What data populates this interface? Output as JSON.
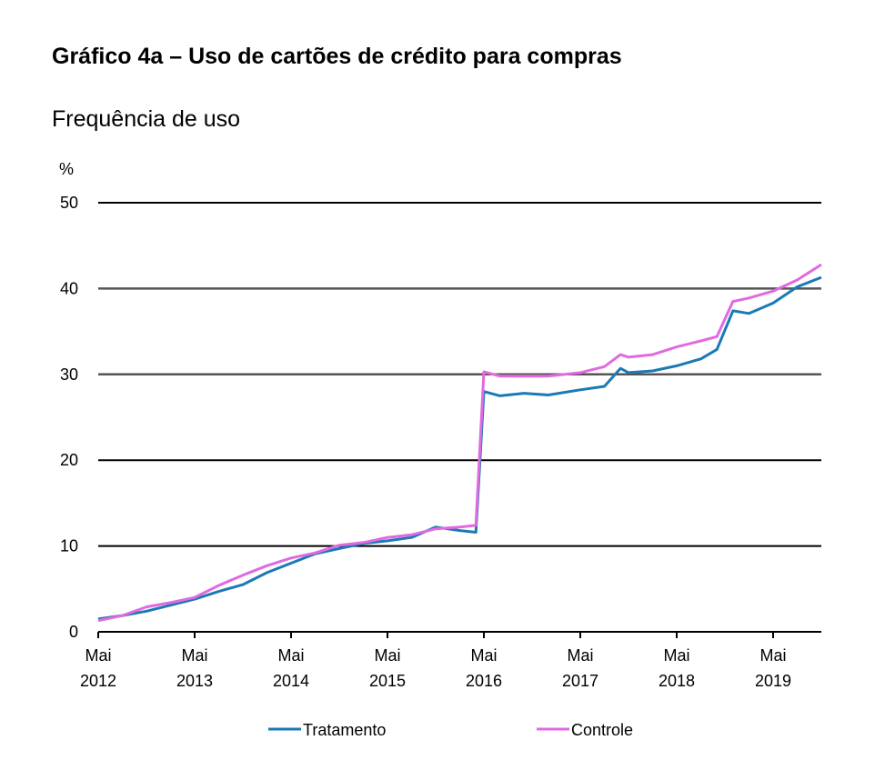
{
  "chart_data": {
    "type": "line",
    "title": "Gráfico 4a – Uso de cartões de crédito para compras",
    "subtitle": "Frequência de uso",
    "ylabel": "%",
    "xlabel": "",
    "ylim": [
      0,
      50
    ],
    "yticks": [
      0,
      10,
      20,
      30,
      40,
      50
    ],
    "xlim": [
      "2012-05",
      "2019-11"
    ],
    "xticks": [
      {
        "date": "2012-05",
        "label1": "Mai",
        "label2": "2012"
      },
      {
        "date": "2013-05",
        "label1": "Mai",
        "label2": "2013"
      },
      {
        "date": "2014-05",
        "label1": "Mai",
        "label2": "2014"
      },
      {
        "date": "2015-05",
        "label1": "Mai",
        "label2": "2015"
      },
      {
        "date": "2016-05",
        "label1": "Mai",
        "label2": "2016"
      },
      {
        "date": "2017-05",
        "label1": "Mai",
        "label2": "2017"
      },
      {
        "date": "2018-05",
        "label1": "Mai",
        "label2": "2018"
      },
      {
        "date": "2019-05",
        "label1": "Mai",
        "label2": "2019"
      }
    ],
    "grid": true,
    "legend_position": "bottom",
    "x": [
      "2012-05",
      "2012-08",
      "2012-11",
      "2013-02",
      "2013-05",
      "2013-08",
      "2013-11",
      "2014-02",
      "2014-05",
      "2014-08",
      "2014-11",
      "2015-02",
      "2015-05",
      "2015-08",
      "2015-11",
      "2016-02",
      "2016-04",
      "2016-05",
      "2016-07",
      "2016-10",
      "2017-01",
      "2017-05",
      "2017-08",
      "2017-10",
      "2017-11",
      "2018-02",
      "2018-05",
      "2018-08",
      "2018-10",
      "2018-12",
      "2019-02",
      "2019-05",
      "2019-08",
      "2019-11"
    ],
    "series": [
      {
        "name": "Tratamento",
        "color": "#1a7ab5",
        "values": [
          1.5,
          1.9,
          2.4,
          3.1,
          3.8,
          4.7,
          5.5,
          6.9,
          8.0,
          9.1,
          9.7,
          10.3,
          10.6,
          11.0,
          12.2,
          11.8,
          11.6,
          28.0,
          27.5,
          27.8,
          27.6,
          28.2,
          28.6,
          30.7,
          30.2,
          30.4,
          31.0,
          31.8,
          32.9,
          37.4,
          37.1,
          38.3,
          40.2,
          41.3
        ]
      },
      {
        "name": "Controle",
        "color": "#e06ae0",
        "values": [
          1.3,
          1.9,
          2.9,
          3.4,
          4.0,
          5.4,
          6.6,
          7.7,
          8.6,
          9.2,
          10.1,
          10.4,
          11.0,
          11.3,
          12.0,
          12.2,
          12.4,
          30.3,
          29.8,
          29.8,
          29.8,
          30.2,
          30.9,
          32.3,
          32.0,
          32.3,
          33.2,
          33.9,
          34.4,
          38.5,
          38.9,
          39.7,
          41.0,
          42.8
        ]
      }
    ]
  }
}
